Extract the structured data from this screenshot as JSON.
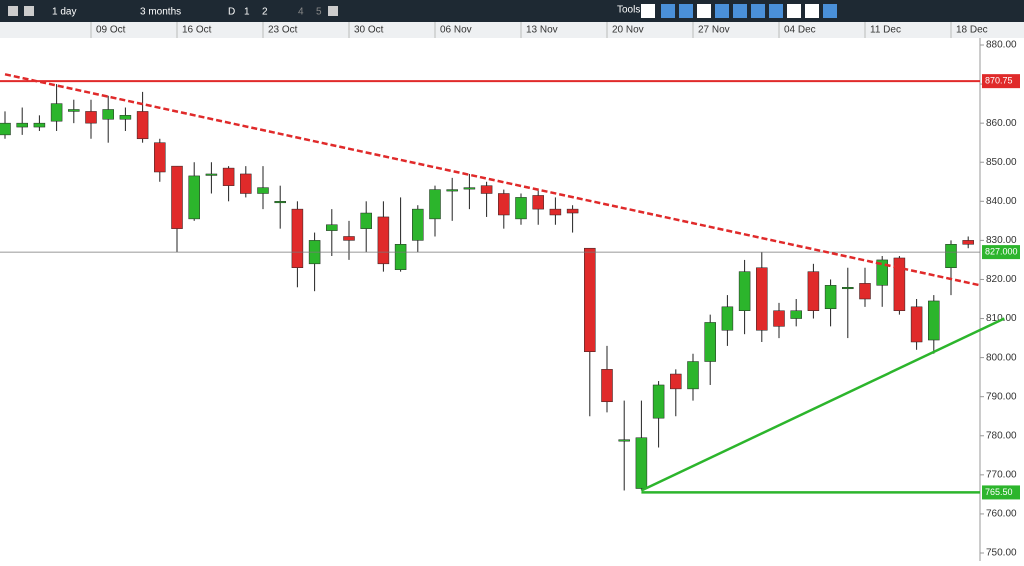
{
  "toolbar": {
    "interval": "1 day",
    "range": "3 months",
    "periods": [
      "D",
      "1",
      "2",
      "4",
      "5"
    ],
    "tools": "Tools"
  },
  "chart_data": {
    "type": "candlestick",
    "categories": [
      null,
      null,
      null,
      null,
      null,
      "09 Oct",
      null,
      null,
      null,
      null,
      "16 Oct",
      null,
      null,
      null,
      null,
      "23 Oct",
      null,
      null,
      null,
      null,
      "30 Oct",
      null,
      null,
      null,
      null,
      "06 Nov",
      null,
      null,
      null,
      null,
      "13 Nov",
      null,
      null,
      null,
      null,
      "20 Nov",
      null,
      null,
      null,
      null,
      "27 Nov",
      null,
      null,
      null,
      null,
      "04 Dec",
      null,
      null,
      null,
      null,
      "11 Dec",
      null,
      null,
      null,
      null,
      "18 Dec",
      null
    ],
    "open": [
      857,
      859,
      859,
      860.5,
      863,
      863,
      861,
      861,
      863,
      855,
      849,
      835.5,
      847,
      848.5,
      847,
      842,
      840,
      838,
      824,
      832.5,
      831,
      833,
      836,
      822.5,
      830,
      835.5,
      843,
      843.5,
      844,
      842,
      835.5,
      841.5,
      838,
      838,
      828,
      797,
      779,
      766.5,
      784.5,
      795.8,
      792,
      799,
      807,
      812,
      823,
      812,
      810,
      822,
      812.5,
      818,
      819,
      818.5,
      825.5,
      813,
      804.5,
      823,
      830
    ],
    "high": [
      863,
      864,
      862,
      870,
      866,
      866,
      867,
      864,
      868,
      856,
      849,
      850,
      850,
      849,
      849,
      849,
      844,
      840,
      832,
      838,
      835,
      840,
      840,
      841,
      839,
      844,
      846,
      847,
      845,
      843,
      842,
      843,
      841,
      839,
      828,
      803,
      789,
      789,
      794,
      797,
      801,
      811,
      816,
      825,
      827,
      814,
      815,
      824,
      820,
      823,
      823,
      826,
      826,
      815,
      816,
      830,
      831
    ],
    "low": [
      856,
      857,
      858,
      858,
      860,
      856,
      855,
      858,
      855,
      845,
      827,
      835,
      842,
      840,
      841,
      838,
      833,
      818,
      817,
      826,
      825,
      827,
      822,
      822,
      827,
      831,
      835,
      838,
      836,
      833,
      834,
      834,
      834,
      832,
      785,
      786,
      766,
      766,
      777,
      785,
      789,
      793,
      803,
      806,
      804,
      805,
      808,
      810,
      808,
      805,
      813,
      813,
      811,
      802,
      801,
      816,
      828
    ],
    "close": [
      860,
      860,
      860,
      865,
      863.5,
      860,
      863.5,
      862,
      856,
      847.5,
      833,
      846.5,
      847,
      844,
      842,
      843.5,
      840,
      823,
      830,
      834,
      830,
      837,
      824,
      829,
      838,
      843,
      843,
      843.5,
      842,
      836.5,
      841,
      838,
      836.5,
      837,
      801.5,
      788.7,
      779,
      779.5,
      793,
      792,
      799,
      809,
      813,
      822,
      807,
      808,
      812,
      812,
      818.5,
      818,
      815,
      825,
      812,
      804,
      814.5,
      829,
      829
    ],
    "up_color": "#2cb52c",
    "down_color": "#e02a2a",
    "ylim": [
      750,
      880
    ],
    "yticks": [
      {
        "value": 750,
        "label": "750.00"
      },
      {
        "value": 760,
        "label": "760.00"
      },
      {
        "value": 770,
        "label": "770.00"
      },
      {
        "value": 780,
        "label": "780.00"
      },
      {
        "value": 790,
        "label": "790.00"
      },
      {
        "value": 800,
        "label": "800.00"
      },
      {
        "value": 810,
        "label": "810.00"
      },
      {
        "value": 820,
        "label": "820.00"
      },
      {
        "value": 830,
        "label": "830.00"
      },
      {
        "value": 840,
        "label": "840.00"
      },
      {
        "value": 850,
        "label": "850.00"
      },
      {
        "value": 860,
        "label": "860.00"
      },
      {
        "value": 870,
        "label": "870.00"
      },
      {
        "value": 880,
        "label": "880.00"
      }
    ],
    "hlines": [
      {
        "value": 870.75,
        "label": "870.75",
        "color": "#e02a2a"
      },
      {
        "value": 827,
        "label": "827.000",
        "color": "#2cb52c"
      }
    ],
    "trendlines": [
      {
        "x": [
          0,
          56.7
        ],
        "y": [
          872.5,
          818.5
        ],
        "color": "#e02a2a",
        "dashed": true
      },
      {
        "x": [
          37,
          58.1
        ],
        "y": [
          766,
          810
        ],
        "color": "#2cb52c",
        "dashed": false
      }
    ],
    "support": {
      "x": 37,
      "value": 765.5,
      "label": "765.50",
      "color": "#2cb52c"
    }
  }
}
